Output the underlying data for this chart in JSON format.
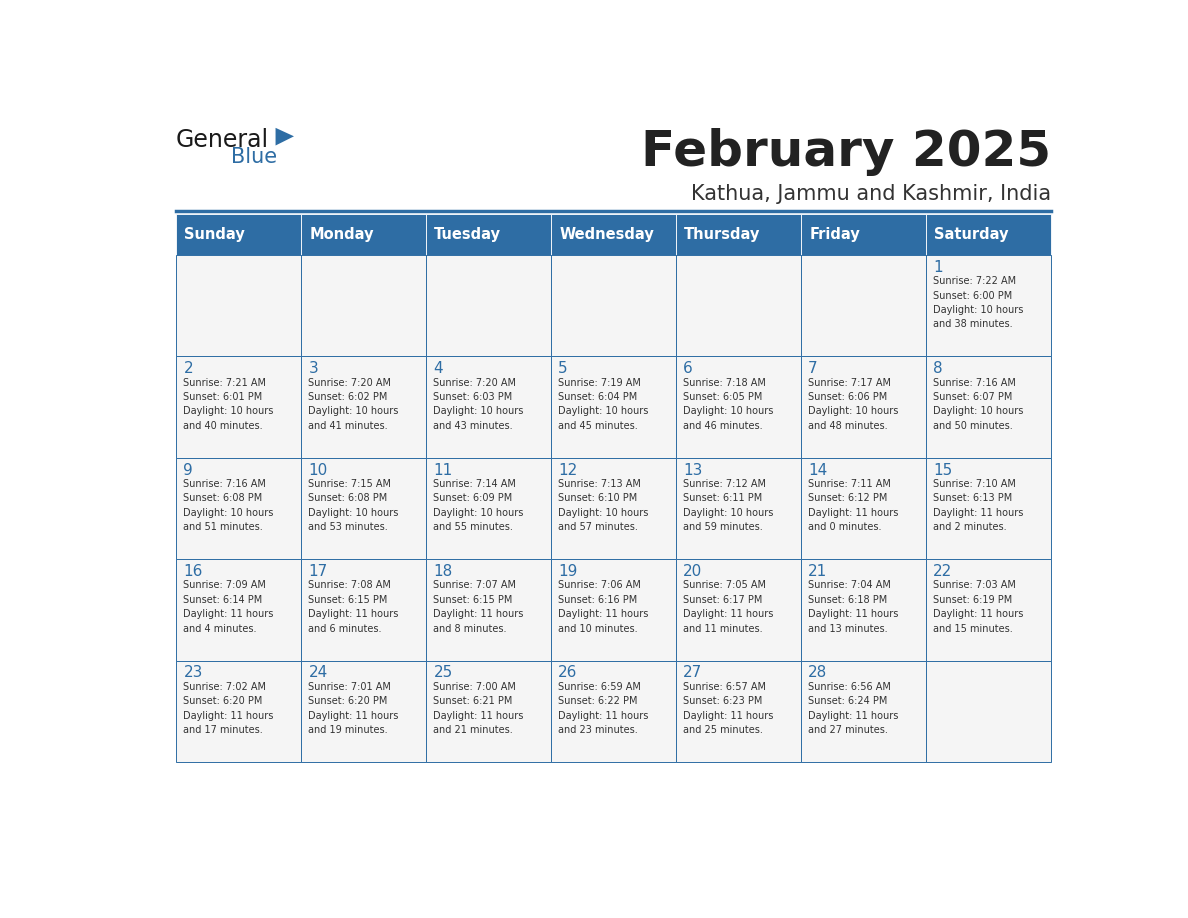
{
  "title": "February 2025",
  "subtitle": "Kathua, Jammu and Kashmir, India",
  "header_bg": "#2e6da4",
  "header_text_color": "#ffffff",
  "cell_bg": "#f5f5f5",
  "border_color": "#2e6da4",
  "days_of_week": [
    "Sunday",
    "Monday",
    "Tuesday",
    "Wednesday",
    "Thursday",
    "Friday",
    "Saturday"
  ],
  "title_color": "#222222",
  "subtitle_color": "#333333",
  "day_num_color": "#2e6da4",
  "cell_text_color": "#333333",
  "weeks": [
    [
      {
        "day": "",
        "info": ""
      },
      {
        "day": "",
        "info": ""
      },
      {
        "day": "",
        "info": ""
      },
      {
        "day": "",
        "info": ""
      },
      {
        "day": "",
        "info": ""
      },
      {
        "day": "",
        "info": ""
      },
      {
        "day": "1",
        "info": "Sunrise: 7:22 AM\nSunset: 6:00 PM\nDaylight: 10 hours\nand 38 minutes."
      }
    ],
    [
      {
        "day": "2",
        "info": "Sunrise: 7:21 AM\nSunset: 6:01 PM\nDaylight: 10 hours\nand 40 minutes."
      },
      {
        "day": "3",
        "info": "Sunrise: 7:20 AM\nSunset: 6:02 PM\nDaylight: 10 hours\nand 41 minutes."
      },
      {
        "day": "4",
        "info": "Sunrise: 7:20 AM\nSunset: 6:03 PM\nDaylight: 10 hours\nand 43 minutes."
      },
      {
        "day": "5",
        "info": "Sunrise: 7:19 AM\nSunset: 6:04 PM\nDaylight: 10 hours\nand 45 minutes."
      },
      {
        "day": "6",
        "info": "Sunrise: 7:18 AM\nSunset: 6:05 PM\nDaylight: 10 hours\nand 46 minutes."
      },
      {
        "day": "7",
        "info": "Sunrise: 7:17 AM\nSunset: 6:06 PM\nDaylight: 10 hours\nand 48 minutes."
      },
      {
        "day": "8",
        "info": "Sunrise: 7:16 AM\nSunset: 6:07 PM\nDaylight: 10 hours\nand 50 minutes."
      }
    ],
    [
      {
        "day": "9",
        "info": "Sunrise: 7:16 AM\nSunset: 6:08 PM\nDaylight: 10 hours\nand 51 minutes."
      },
      {
        "day": "10",
        "info": "Sunrise: 7:15 AM\nSunset: 6:08 PM\nDaylight: 10 hours\nand 53 minutes."
      },
      {
        "day": "11",
        "info": "Sunrise: 7:14 AM\nSunset: 6:09 PM\nDaylight: 10 hours\nand 55 minutes."
      },
      {
        "day": "12",
        "info": "Sunrise: 7:13 AM\nSunset: 6:10 PM\nDaylight: 10 hours\nand 57 minutes."
      },
      {
        "day": "13",
        "info": "Sunrise: 7:12 AM\nSunset: 6:11 PM\nDaylight: 10 hours\nand 59 minutes."
      },
      {
        "day": "14",
        "info": "Sunrise: 7:11 AM\nSunset: 6:12 PM\nDaylight: 11 hours\nand 0 minutes."
      },
      {
        "day": "15",
        "info": "Sunrise: 7:10 AM\nSunset: 6:13 PM\nDaylight: 11 hours\nand 2 minutes."
      }
    ],
    [
      {
        "day": "16",
        "info": "Sunrise: 7:09 AM\nSunset: 6:14 PM\nDaylight: 11 hours\nand 4 minutes."
      },
      {
        "day": "17",
        "info": "Sunrise: 7:08 AM\nSunset: 6:15 PM\nDaylight: 11 hours\nand 6 minutes."
      },
      {
        "day": "18",
        "info": "Sunrise: 7:07 AM\nSunset: 6:15 PM\nDaylight: 11 hours\nand 8 minutes."
      },
      {
        "day": "19",
        "info": "Sunrise: 7:06 AM\nSunset: 6:16 PM\nDaylight: 11 hours\nand 10 minutes."
      },
      {
        "day": "20",
        "info": "Sunrise: 7:05 AM\nSunset: 6:17 PM\nDaylight: 11 hours\nand 11 minutes."
      },
      {
        "day": "21",
        "info": "Sunrise: 7:04 AM\nSunset: 6:18 PM\nDaylight: 11 hours\nand 13 minutes."
      },
      {
        "day": "22",
        "info": "Sunrise: 7:03 AM\nSunset: 6:19 PM\nDaylight: 11 hours\nand 15 minutes."
      }
    ],
    [
      {
        "day": "23",
        "info": "Sunrise: 7:02 AM\nSunset: 6:20 PM\nDaylight: 11 hours\nand 17 minutes."
      },
      {
        "day": "24",
        "info": "Sunrise: 7:01 AM\nSunset: 6:20 PM\nDaylight: 11 hours\nand 19 minutes."
      },
      {
        "day": "25",
        "info": "Sunrise: 7:00 AM\nSunset: 6:21 PM\nDaylight: 11 hours\nand 21 minutes."
      },
      {
        "day": "26",
        "info": "Sunrise: 6:59 AM\nSunset: 6:22 PM\nDaylight: 11 hours\nand 23 minutes."
      },
      {
        "day": "27",
        "info": "Sunrise: 6:57 AM\nSunset: 6:23 PM\nDaylight: 11 hours\nand 25 minutes."
      },
      {
        "day": "28",
        "info": "Sunrise: 6:56 AM\nSunset: 6:24 PM\nDaylight: 11 hours\nand 27 minutes."
      },
      {
        "day": "",
        "info": ""
      }
    ]
  ],
  "logo_general_color": "#1a1a1a",
  "logo_blue_color": "#2e6da4"
}
